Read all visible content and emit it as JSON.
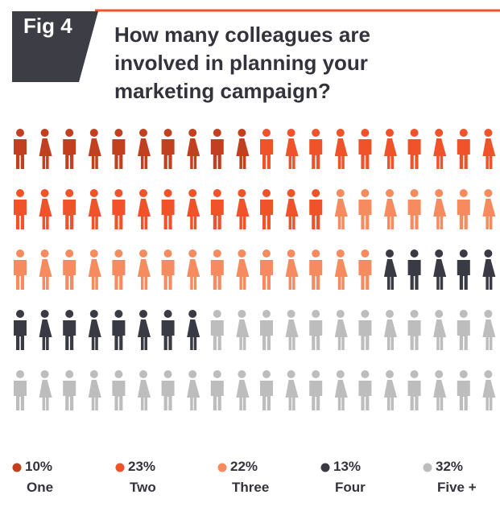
{
  "fig_label": "Fig 4",
  "chart_data": {
    "type": "pictogram",
    "title": "How many colleagues are involved in planning your marketing campaign?",
    "categories": [
      "One",
      "Two",
      "Three",
      "Four",
      "Five +"
    ],
    "values": [
      10,
      23,
      22,
      13,
      32
    ],
    "value_labels": [
      "10%",
      "23%",
      "22%",
      "13%",
      "32%"
    ],
    "colors": [
      "#c1401f",
      "#f0532a",
      "#f58b5e",
      "#3a3a44",
      "#bdbdbd"
    ]
  }
}
